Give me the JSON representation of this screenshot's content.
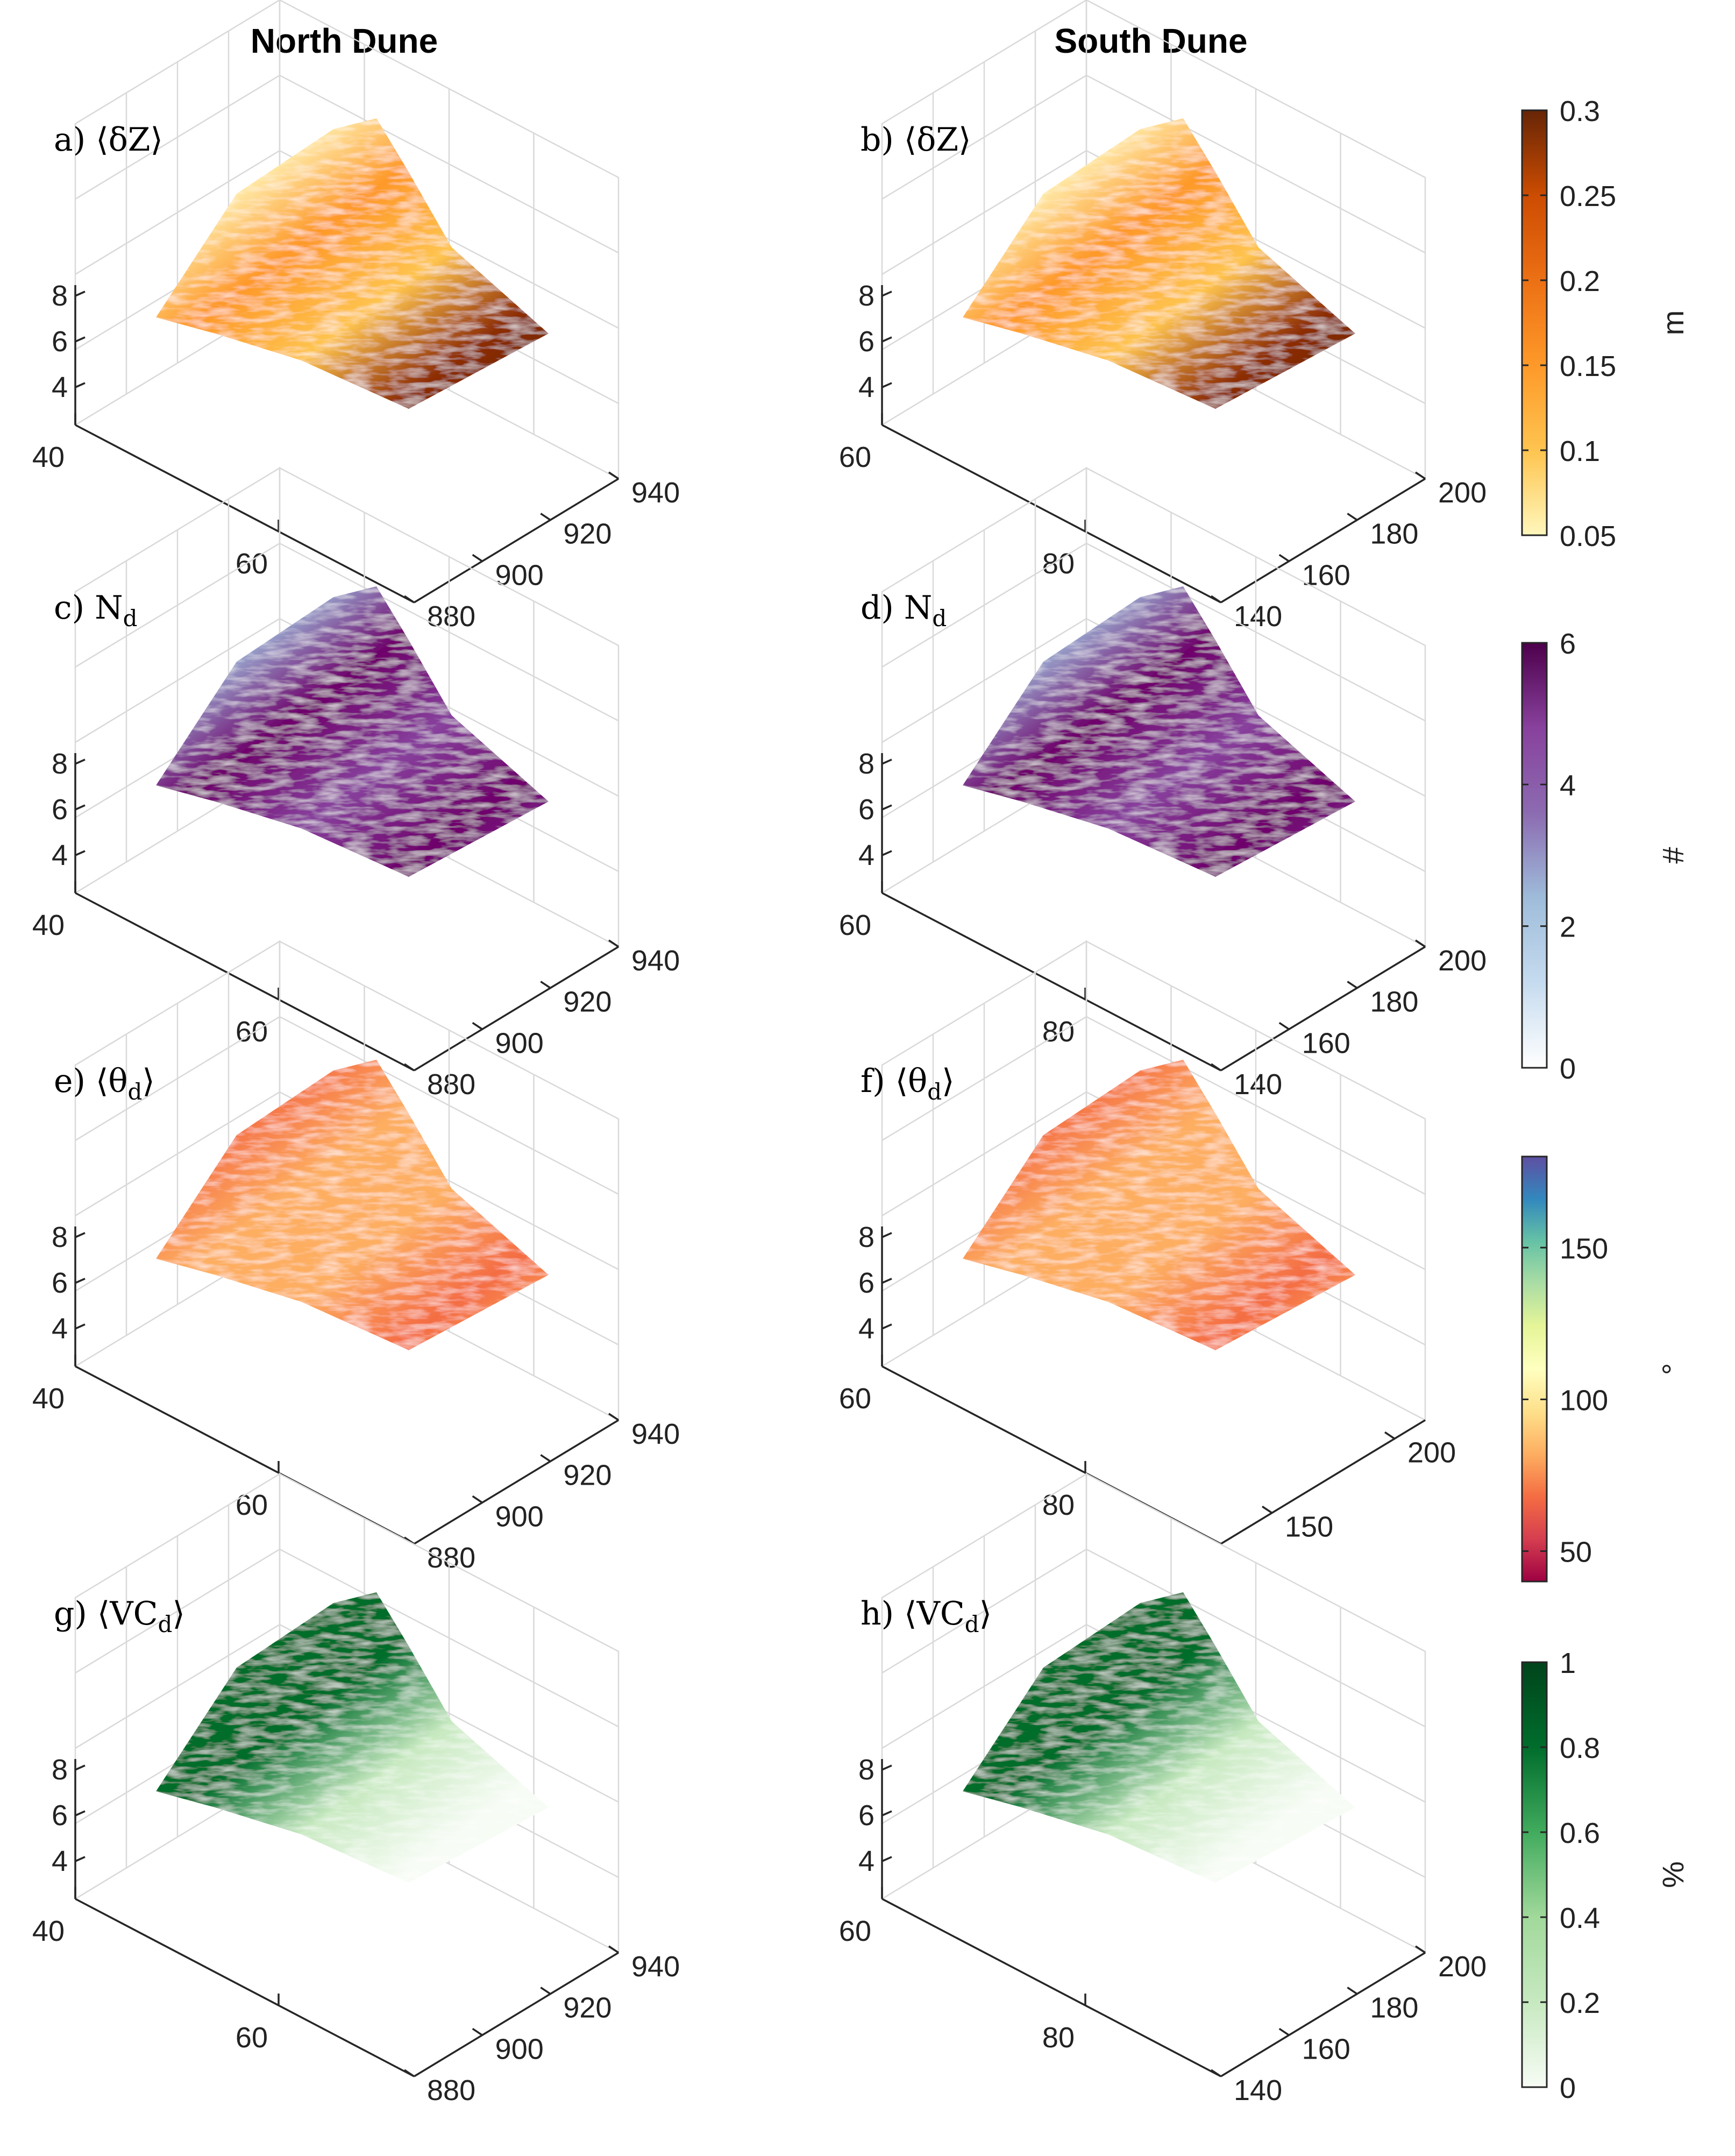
{
  "column_titles": [
    "North Dune",
    "South Dune"
  ],
  "chart_data": [
    {
      "type": "surface3d",
      "panel": "a)",
      "label": "⟨δZ⟩",
      "column": "North Dune",
      "colorbar": "dz",
      "x_ticks": [
        "40",
        "60"
      ],
      "y_ticks": [
        "880",
        "900",
        "920",
        "940"
      ],
      "z_ticks": [
        "4",
        "6",
        "8"
      ]
    },
    {
      "type": "surface3d",
      "panel": "b)",
      "label": "⟨δZ⟩",
      "column": "South Dune",
      "colorbar": "dz",
      "x_ticks": [
        "60",
        "80"
      ],
      "y_ticks": [
        "140",
        "160",
        "180",
        "200"
      ],
      "z_ticks": [
        "4",
        "6",
        "8"
      ]
    },
    {
      "type": "surface3d",
      "panel": "c)",
      "label": "N",
      "sub": "d",
      "column": "North Dune",
      "colorbar": "nd",
      "x_ticks": [
        "40",
        "60"
      ],
      "y_ticks": [
        "880",
        "900",
        "920",
        "940"
      ],
      "z_ticks": [
        "4",
        "6",
        "8"
      ]
    },
    {
      "type": "surface3d",
      "panel": "d)",
      "label": "N",
      "sub": "d",
      "column": "South Dune",
      "colorbar": "nd",
      "x_ticks": [
        "60",
        "80"
      ],
      "y_ticks": [
        "140",
        "160",
        "180",
        "200"
      ],
      "z_ticks": [
        "4",
        "6",
        "8"
      ]
    },
    {
      "type": "surface3d",
      "panel": "e)",
      "label": "⟨θ",
      "sub": "d",
      "close": "⟩",
      "column": "North Dune",
      "colorbar": "theta",
      "x_ticks": [
        "40",
        "60"
      ],
      "y_ticks": [
        "880",
        "900",
        "920",
        "940"
      ],
      "z_ticks": [
        "4",
        "6",
        "8"
      ]
    },
    {
      "type": "surface3d",
      "panel": "f)",
      "label": "⟨θ",
      "sub": "d",
      "close": "⟩",
      "column": "South Dune",
      "colorbar": "theta",
      "x_ticks": [
        "60",
        "80"
      ],
      "y_ticks": [
        "150",
        "200"
      ],
      "z_ticks": [
        "4",
        "6",
        "8"
      ]
    },
    {
      "type": "surface3d",
      "panel": "g)",
      "label": "⟨VC",
      "sub": "d",
      "close": "⟩",
      "column": "North Dune",
      "colorbar": "vc",
      "x_ticks": [
        "40",
        "60"
      ],
      "y_ticks": [
        "880",
        "900",
        "920",
        "940"
      ],
      "z_ticks": [
        "4",
        "6",
        "8"
      ]
    },
    {
      "type": "surface3d",
      "panel": "h)",
      "label": "⟨VC",
      "sub": "d",
      "close": "⟩",
      "column": "South Dune",
      "colorbar": "vc",
      "x_ticks": [
        "60",
        "80"
      ],
      "y_ticks": [
        "140",
        "160",
        "180",
        "200"
      ],
      "z_ticks": [
        "4",
        "6",
        "8"
      ]
    }
  ],
  "colorbars": {
    "dz": {
      "unit": "m",
      "range": [
        0.05,
        0.3
      ],
      "ticks": [
        "0.3",
        "0.25",
        "0.2",
        "0.15",
        "0.1",
        "0.05"
      ],
      "colors": [
        "#fff7bc",
        "#fec44f",
        "#fe9929",
        "#ec7014",
        "#cc4c02",
        "#8c2d04",
        "#662506"
      ]
    },
    "nd": {
      "unit": "#",
      "range": [
        0,
        6
      ],
      "ticks": [
        "6",
        "4",
        "2",
        "0"
      ],
      "colors": [
        "#ffffff",
        "#c6dbef",
        "#9ebcda",
        "#8c96c6",
        "#8c6bb1",
        "#88419d",
        "#6e016b",
        "#4d004b"
      ]
    },
    "theta": {
      "unit": "°",
      "range": [
        40,
        180
      ],
      "ticks": [
        "150",
        "100",
        "50"
      ],
      "colors": [
        "#9e0142",
        "#d53e4f",
        "#f46d43",
        "#fdae61",
        "#fee08b",
        "#ffffbf",
        "#e6f598",
        "#abdda4",
        "#66c2a5",
        "#3288bd",
        "#5e4fa2"
      ]
    },
    "vc": {
      "unit": "%",
      "range": [
        0,
        1
      ],
      "ticks": [
        "1",
        "0.8",
        "0.6",
        "0.4",
        "0.2",
        "0"
      ],
      "colors": [
        "#f7fcf5",
        "#c7e9c0",
        "#a1d99b",
        "#74c476",
        "#41ab5d",
        "#238b45",
        "#006d2c",
        "#00441b"
      ]
    }
  }
}
